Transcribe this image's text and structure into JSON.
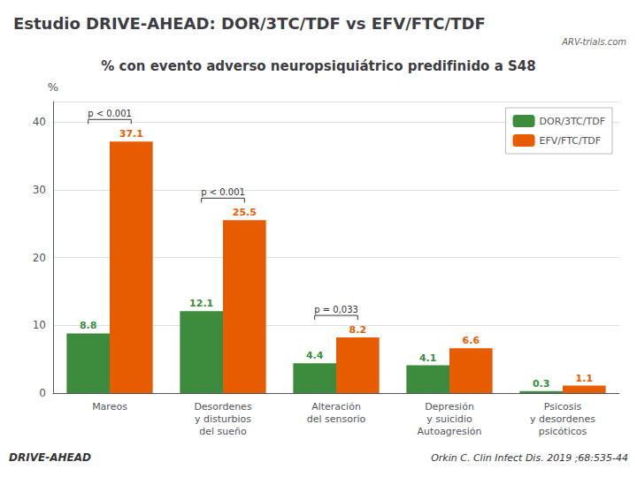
{
  "chart_data": {
    "type": "bar",
    "title": "Estudio DRIVE-AHEAD: DOR/3TC/TDF vs EFV/FTC/TDF",
    "subtitle": "% con evento adverso neuropsiquiátrico predifinido a S48",
    "categories": [
      "Mareos",
      "Desordenes\ny disturbios\ndel sueño",
      "Alteración\ndel sensorio",
      "Depresión\ny suicidio\nAutoagresión",
      "Psicosis\ny desordenes\npsicóticos"
    ],
    "series": [
      {
        "name": "DOR/3TC/TDF",
        "color": "#3d8c3d",
        "values": [
          8.8,
          12.1,
          4.4,
          4.1,
          0.3
        ]
      },
      {
        "name": "EFV/FTC/TDF",
        "color": "#e85c00",
        "values": [
          37.1,
          25.5,
          8.2,
          6.6,
          1.1
        ]
      }
    ],
    "ylim": [
      0,
      43
    ],
    "yticks": [
      0,
      10,
      20,
      30,
      40
    ],
    "ylabel": "%",
    "grid": true,
    "legend": "upper right",
    "data_labels": true,
    "annotations": [
      {
        "category": "Mareos",
        "text": "p < 0.001"
      },
      {
        "category": "Desordenes\ny disturbios\ndel sueño",
        "text": "p < 0.001"
      },
      {
        "category": "Alteración\ndel sensorio",
        "text": "p = 0,033"
      }
    ],
    "logo": "ARV-trials.com",
    "footer_left": "DRIVE-AHEAD",
    "footer_right": "Orkin C. Clin Infect Dis. 2019 ;68:535-44"
  }
}
